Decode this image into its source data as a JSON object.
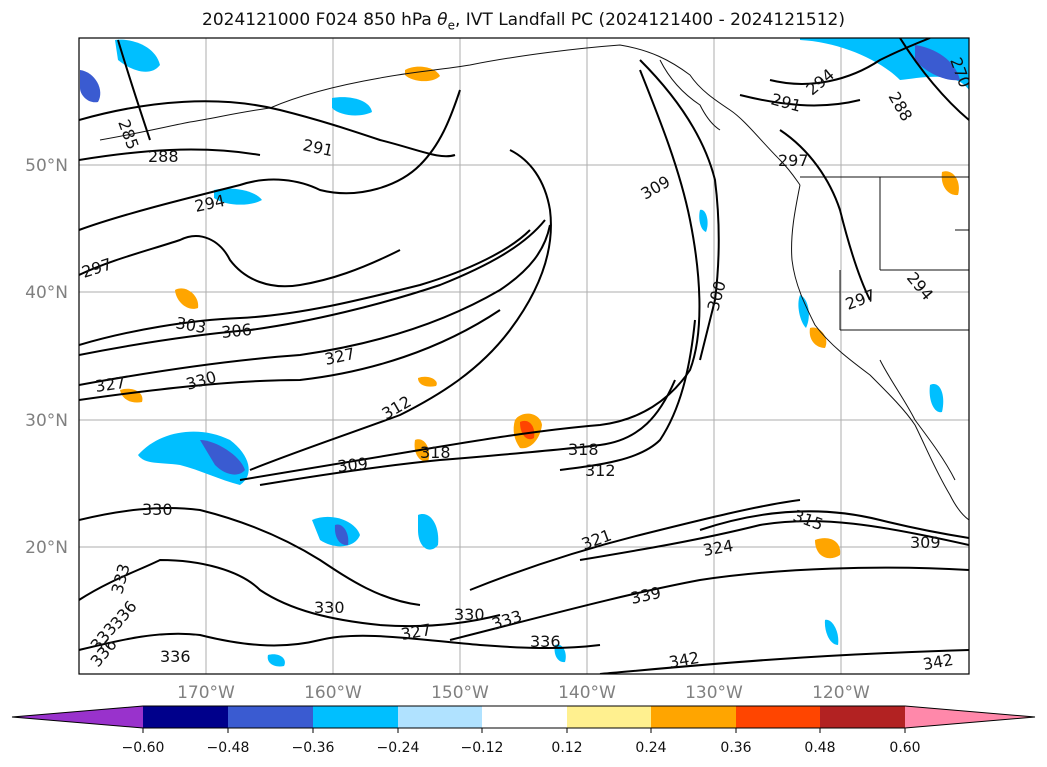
{
  "title": {
    "prefix": "2024121000 F024 850 hPa ",
    "theta": "θ",
    "theta_sub": "e",
    "suffix": ", IVT Landfall PC (2024121400 - 2024121512)"
  },
  "latitude_labels": [
    "50°N",
    "40°N",
    "30°N",
    "20°N"
  ],
  "longitude_labels": [
    "170°W",
    "160°W",
    "150°W",
    "140°W",
    "130°W",
    "120°W"
  ],
  "colorbar": {
    "colors": [
      "#9932cc",
      "#00008b",
      "#3a5bd1",
      "#00bfff",
      "#b0e2ff",
      "#ffffff",
      "#fff08f",
      "#ffa500",
      "#ff4500",
      "#b22222",
      "#ff88aa"
    ],
    "tick_labels": [
      "−0.60",
      "−0.48",
      "−0.36",
      "−0.24",
      "−0.12",
      "0.12",
      "0.24",
      "0.36",
      "0.48",
      "0.60"
    ]
  },
  "contour_labels": [
    "285",
    "288",
    "291",
    "294",
    "297",
    "303",
    "306",
    "327",
    "327",
    "330",
    "312",
    "309",
    "318",
    "318",
    "312",
    "309",
    "300",
    "297",
    "294",
    "291",
    "294",
    "297",
    "270",
    "288",
    "330",
    "333",
    "336",
    "333",
    "336",
    "330",
    "336",
    "327",
    "330",
    "333",
    "336",
    "339",
    "321",
    "324",
    "315",
    "309",
    "342",
    "342"
  ]
}
